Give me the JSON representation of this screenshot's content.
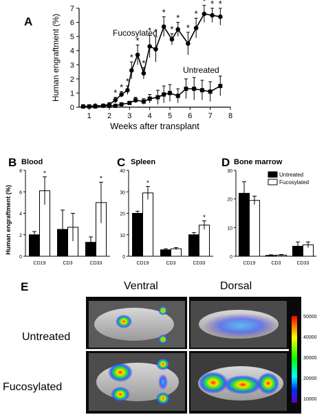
{
  "panels": {
    "A": "A",
    "B": "B",
    "C": "C",
    "D": "D",
    "E": "E"
  },
  "panel_titles": {
    "B": "Blood",
    "C": "Spleen",
    "D": "Bone marrow"
  },
  "shared_ylabel_BCD": "Human engraftment (%)",
  "imaging": {
    "col_labels": [
      "Ventral",
      "Dorsal"
    ],
    "row_labels": [
      "Untreated",
      "Fucosylated"
    ],
    "colorbar_ticks": [
      "50000",
      "40000",
      "30000",
      "20000",
      "10000"
    ]
  },
  "chart_data": [
    {
      "id": "A",
      "type": "line",
      "xlabel": "Weeks after transplant",
      "ylabel": "Human engraftment (%)",
      "xlim": [
        0.5,
        8
      ],
      "ylim": [
        0,
        7
      ],
      "xticks": [
        1,
        2,
        3,
        4,
        5,
        6,
        7,
        8
      ],
      "yticks": [
        0,
        1,
        2,
        3,
        4,
        5,
        6,
        7
      ],
      "series": [
        {
          "name": "Fucosylated",
          "marker": "circle",
          "x": [
            0.7,
            1.0,
            1.3,
            1.7,
            2.0,
            2.3,
            2.6,
            2.9,
            3.1,
            3.4,
            3.7,
            4.0,
            4.3,
            4.7,
            5.1,
            5.4,
            5.9,
            6.3,
            6.7,
            7.1,
            7.5
          ],
          "y": [
            0.05,
            0.05,
            0.1,
            0.1,
            0.2,
            0.5,
            0.9,
            1.2,
            2.6,
            3.7,
            2.4,
            4.3,
            4.1,
            5.7,
            4.8,
            5.5,
            4.5,
            5.6,
            6.6,
            6.5,
            6.4
          ],
          "err": [
            0.05,
            0.05,
            0.05,
            0.05,
            0.1,
            0.2,
            0.2,
            0.3,
            0.6,
            0.7,
            0.4,
            0.8,
            0.9,
            0.7,
            0.4,
            0.5,
            0.8,
            0.7,
            0.6,
            0.5,
            0.6
          ],
          "sig": [
            false,
            false,
            false,
            false,
            false,
            true,
            true,
            true,
            true,
            true,
            true,
            true,
            true,
            true,
            true,
            true,
            true,
            true,
            true,
            true,
            true
          ]
        },
        {
          "name": "Untreated",
          "marker": "square",
          "x": [
            0.7,
            1.0,
            1.3,
            1.7,
            2.0,
            2.3,
            2.6,
            3.0,
            3.3,
            3.7,
            4.0,
            4.4,
            4.7,
            5.0,
            5.4,
            5.8,
            6.2,
            6.6,
            7.0,
            7.5
          ],
          "y": [
            0.05,
            0.05,
            0.05,
            0.1,
            0.1,
            0.1,
            0.2,
            0.3,
            0.5,
            0.4,
            0.6,
            0.7,
            0.9,
            1.0,
            0.8,
            1.3,
            1.3,
            1.2,
            1.1,
            1.5
          ],
          "err": [
            0.05,
            0.05,
            0.05,
            0.05,
            0.05,
            0.05,
            0.1,
            0.1,
            0.2,
            0.2,
            0.3,
            0.5,
            0.6,
            0.6,
            0.5,
            0.7,
            0.8,
            0.7,
            0.7,
            0.7
          ]
        }
      ]
    },
    {
      "id": "B",
      "type": "bar",
      "ylim": [
        0,
        8
      ],
      "yticks": [
        0,
        2,
        4,
        6,
        8
      ],
      "categories": [
        "CD19",
        "CD3",
        "CD33"
      ],
      "series": [
        {
          "fill": "black",
          "values": [
            2.0,
            2.5,
            1.3
          ],
          "err": [
            0.3,
            1.8,
            0.5
          ]
        },
        {
          "fill": "white",
          "values": [
            6.1,
            2.7,
            5.0
          ],
          "err": [
            1.3,
            1.3,
            1.9
          ]
        }
      ],
      "sig": [
        true,
        false,
        true
      ]
    },
    {
      "id": "C",
      "type": "bar",
      "ylim": [
        0,
        40
      ],
      "yticks": [
        0,
        10,
        20,
        30,
        40
      ],
      "categories": [
        "CD19",
        "CD3",
        "CD33"
      ],
      "series": [
        {
          "fill": "black",
          "values": [
            20.0,
            3.0,
            10.0
          ],
          "err": [
            1.0,
            0.5,
            1.0
          ]
        },
        {
          "fill": "white",
          "values": [
            29.5,
            3.5,
            14.5
          ],
          "err": [
            3.0,
            0.5,
            2.0
          ]
        }
      ],
      "sig": [
        true,
        false,
        true
      ]
    },
    {
      "id": "D",
      "type": "bar",
      "ylim": [
        0,
        30
      ],
      "yticks": [
        0,
        10,
        20,
        30
      ],
      "categories": [
        "CD19",
        "CD3",
        "CD33"
      ],
      "series": [
        {
          "name": "Untreated",
          "fill": "black",
          "values": [
            22.0,
            0.3,
            3.5
          ],
          "err": [
            4.0,
            0.2,
            1.5
          ]
        },
        {
          "name": "Fucosylated",
          "fill": "white",
          "values": [
            19.5,
            0.4,
            4.0
          ],
          "err": [
            1.5,
            0.2,
            1.0
          ]
        }
      ],
      "sig": [
        false,
        false,
        false
      ]
    }
  ]
}
